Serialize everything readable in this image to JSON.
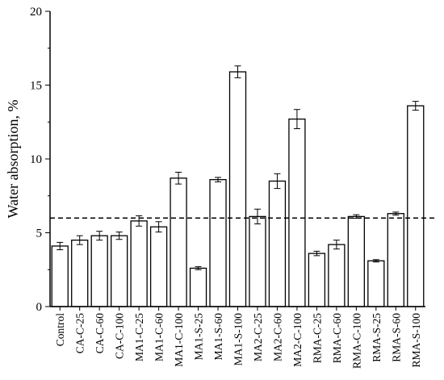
{
  "chart_data": {
    "type": "bar",
    "title": "",
    "xlabel": "",
    "ylabel": "Water absorption, %",
    "ylim": [
      0,
      20
    ],
    "yticks": [
      0,
      5,
      10,
      15,
      20
    ],
    "grid": false,
    "legend": "none",
    "categories": [
      "Control",
      "CA-C-25",
      "CA-C-60",
      "CA-C-100",
      "MA1-C-25",
      "MA1-C-60",
      "MA1-C-100",
      "MA1-S-25",
      "MA1-S-60",
      "MA1-S-100",
      "MA2-C-25",
      "MA2-C-60",
      "MA2-C-100",
      "RMA-C-25",
      "RMA-C-60",
      "RMA-C-100",
      "RMA-S-25",
      "RMA-S-60",
      "RMA-S-100"
    ],
    "values": [
      4.1,
      4.5,
      4.8,
      4.8,
      5.8,
      5.4,
      8.7,
      2.6,
      8.6,
      15.9,
      6.1,
      8.5,
      12.7,
      3.6,
      4.2,
      6.1,
      3.1,
      6.3,
      13.6
    ],
    "errors": [
      0.25,
      0.3,
      0.3,
      0.25,
      0.35,
      0.35,
      0.4,
      0.1,
      0.15,
      0.4,
      0.5,
      0.5,
      0.65,
      0.15,
      0.3,
      0.12,
      0.08,
      0.1,
      0.3
    ],
    "reference_line": {
      "value": 6.0,
      "style": "dashed"
    },
    "colors": {
      "bar_fill": "#ffffff",
      "bar_stroke": "#000000",
      "axis": "#000000"
    }
  }
}
